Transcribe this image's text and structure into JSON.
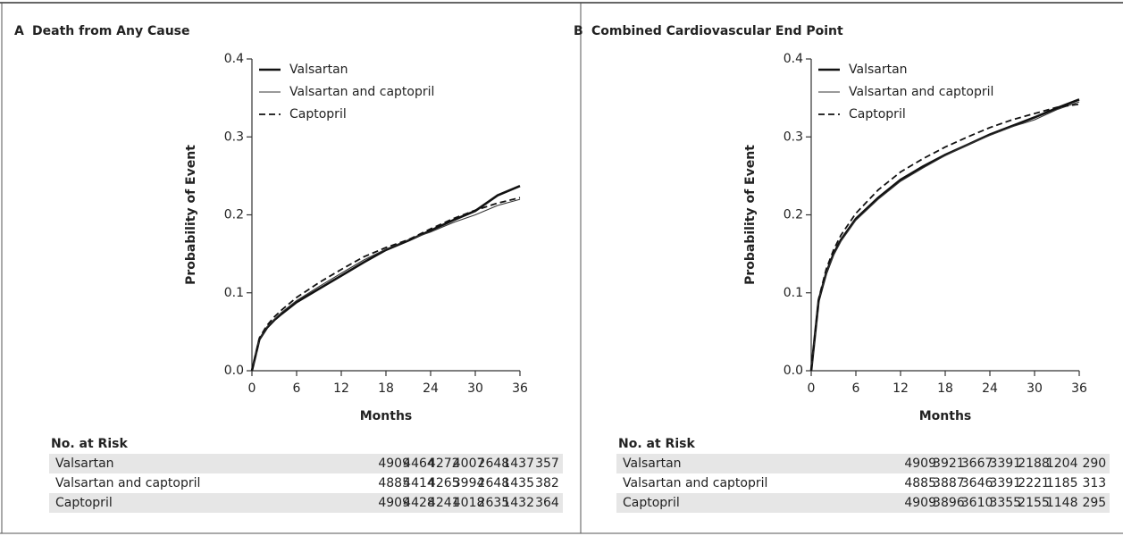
{
  "chart_data": [
    {
      "type": "line",
      "label": "A",
      "title": "Death from Any Cause",
      "xlabel": "Months",
      "ylabel": "Probability of Event",
      "x": [
        0,
        1,
        2,
        3,
        4,
        6,
        9,
        12,
        15,
        18,
        21,
        24,
        27,
        30,
        33,
        36
      ],
      "xlim": [
        0,
        36
      ],
      "xticks": [
        0,
        6,
        12,
        18,
        24,
        30,
        36
      ],
      "ylim": [
        0,
        0.4
      ],
      "yticks": [
        {
          "value": 0,
          "label": "0.0"
        },
        0.1,
        0.2,
        0.3,
        0.4
      ],
      "legend": "upper left",
      "series": [
        {
          "name": "Valsartan",
          "color": "#111111",
          "style": "solid",
          "width": 2.6,
          "values": [
            0,
            0.04,
            0.055,
            0.065,
            0.073,
            0.088,
            0.105,
            0.122,
            0.139,
            0.155,
            0.167,
            0.18,
            0.193,
            0.205,
            0.225,
            0.237
          ]
        },
        {
          "name": "Valsartan and captopril",
          "color": "#333333",
          "style": "solid",
          "width": 1.1,
          "values": [
            0,
            0.04,
            0.056,
            0.066,
            0.075,
            0.09,
            0.108,
            0.125,
            0.142,
            0.156,
            0.168,
            0.178,
            0.19,
            0.2,
            0.212,
            0.22
          ]
        },
        {
          "name": "Captopril",
          "color": "#111111",
          "style": "dashed",
          "width": 1.8,
          "values": [
            0,
            0.042,
            0.058,
            0.069,
            0.078,
            0.094,
            0.113,
            0.13,
            0.146,
            0.158,
            0.168,
            0.182,
            0.195,
            0.206,
            0.215,
            0.222
          ]
        }
      ],
      "risk_table": {
        "title": "No. at Risk",
        "rows": [
          {
            "name": "Valsartan",
            "values": [
              4909,
              4464,
              4272,
              4007,
              2648,
              1437,
              357
            ]
          },
          {
            "name": "Valsartan and captopril",
            "values": [
              4885,
              4414,
              4265,
              3994,
              2648,
              1435,
              382
            ]
          },
          {
            "name": "Captopril",
            "values": [
              4909,
              4428,
              4241,
              4018,
              2635,
              1432,
              364
            ]
          }
        ]
      }
    },
    {
      "type": "line",
      "label": "B",
      "title": "Combined Cardiovascular End Point",
      "xlabel": "Months",
      "ylabel": "Probability of Event",
      "x": [
        0,
        1,
        2,
        3,
        4,
        6,
        9,
        12,
        15,
        18,
        21,
        24,
        27,
        30,
        33,
        36
      ],
      "xlim": [
        0,
        36
      ],
      "xticks": [
        0,
        6,
        12,
        18,
        24,
        30,
        36
      ],
      "ylim": [
        0,
        0.4
      ],
      "yticks": [
        {
          "value": 0,
          "label": "0.0"
        },
        0.1,
        0.2,
        0.3,
        0.4
      ],
      "legend": "upper left",
      "series": [
        {
          "name": "Valsartan",
          "color": "#111111",
          "style": "solid",
          "width": 2.6,
          "values": [
            0,
            0.09,
            0.125,
            0.15,
            0.168,
            0.195,
            0.222,
            0.245,
            0.262,
            0.277,
            0.29,
            0.303,
            0.314,
            0.325,
            0.337,
            0.348
          ]
        },
        {
          "name": "Valsartan and captopril",
          "color": "#333333",
          "style": "solid",
          "width": 1.1,
          "values": [
            0,
            0.09,
            0.125,
            0.148,
            0.166,
            0.193,
            0.22,
            0.243,
            0.26,
            0.276,
            0.29,
            0.302,
            0.313,
            0.322,
            0.335,
            0.345
          ]
        },
        {
          "name": "Captopril",
          "color": "#111111",
          "style": "dashed",
          "width": 1.8,
          "values": [
            0,
            0.092,
            0.13,
            0.155,
            0.174,
            0.202,
            0.232,
            0.255,
            0.272,
            0.287,
            0.3,
            0.312,
            0.322,
            0.33,
            0.338,
            0.342
          ]
        }
      ],
      "risk_table": {
        "title": "No. at Risk",
        "rows": [
          {
            "name": "Valsartan",
            "values": [
              4909,
              3921,
              3667,
              3391,
              2188,
              1204,
              290
            ]
          },
          {
            "name": "Valsartan and captopril",
            "values": [
              4885,
              3887,
              3646,
              3391,
              2221,
              1185,
              313
            ]
          },
          {
            "name": "Captopril",
            "values": [
              4909,
              3896,
              3610,
              3355,
              2155,
              1148,
              295
            ]
          }
        ]
      }
    }
  ]
}
